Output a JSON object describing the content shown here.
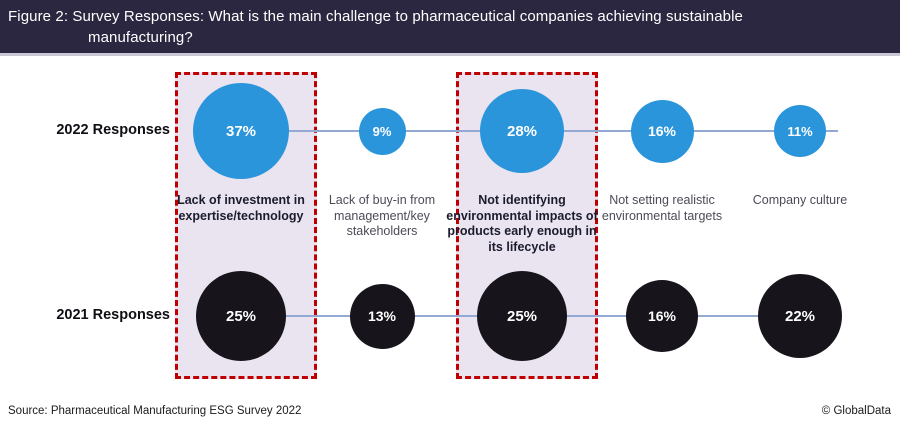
{
  "header": {
    "title_line1": "Figure 2: Survey Responses: What is the main challenge to pharmaceutical companies achieving sustainable",
    "title_line2": "manufacturing?"
  },
  "footer": {
    "source": "Source: Pharmaceutical Manufacturing ESG Survey 2022",
    "brand": "© GlobalData"
  },
  "chart_data": {
    "type": "bubble",
    "title": "Survey Responses: What is the main challenge to pharmaceutical companies achieving sustainable manufacturing?",
    "unit": "%",
    "categories": [
      "Lack of investment in expertise/technology",
      "Lack of buy-in from management/key stakeholders",
      "Not identifying environmental impacts of products early enough in its lifecycle",
      "Not setting realistic environmental targets",
      "Company culture"
    ],
    "series": [
      {
        "name": "2022 Responses",
        "values": [
          37,
          9,
          28,
          16,
          11
        ],
        "color": "#2b95dc"
      },
      {
        "name": "2021 Responses",
        "values": [
          25,
          13,
          25,
          16,
          22
        ],
        "color": "#17151b"
      }
    ],
    "highlighted_categories": [
      0,
      2
    ],
    "emphasized_category_labels": [
      0,
      2
    ],
    "value_suffix": "%",
    "legend_position": "none",
    "grid": false,
    "connector_line_color": "#93a8d3",
    "highlight_fill": "#e9e4f0",
    "highlight_border": "#c00000"
  }
}
